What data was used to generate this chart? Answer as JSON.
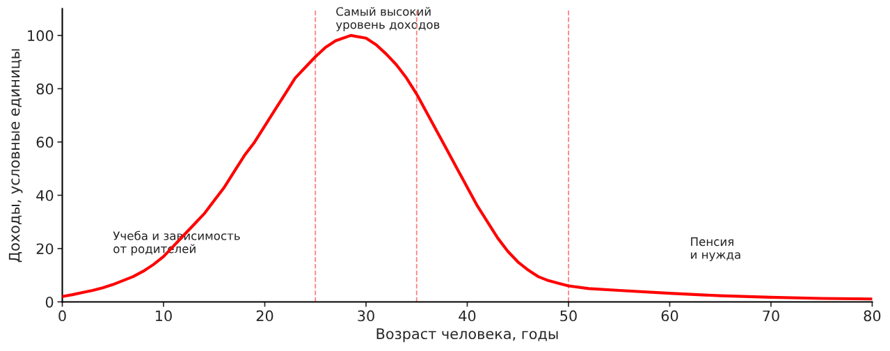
{
  "chart_data": {
    "type": "line",
    "xlabel": "Возраст человека, годы",
    "ylabel": "Доходы, условные единицы",
    "x": [
      0,
      1,
      2,
      3,
      4,
      5,
      6,
      7,
      8,
      9,
      10,
      11,
      12,
      13,
      14,
      15,
      16,
      17,
      18,
      19,
      20,
      21,
      22,
      23,
      24,
      25,
      26,
      27,
      28.5,
      30,
      31,
      32,
      33,
      34,
      35,
      36,
      37,
      38,
      39,
      40,
      41,
      42,
      43,
      44,
      45,
      46,
      47,
      48,
      49,
      50,
      52,
      55,
      60,
      65,
      70,
      75,
      80
    ],
    "series": [
      {
        "color": "#ff0000",
        "values": [
          2,
          2.7,
          3.5,
          4.3,
          5.3,
          6.5,
          8,
          9.5,
          11.5,
          14,
          17,
          21,
          25,
          29,
          33,
          38,
          43,
          49,
          55,
          60,
          66,
          72,
          78,
          84,
          88,
          92,
          95.5,
          98,
          100,
          99,
          96.5,
          93,
          89,
          84,
          78,
          71,
          64,
          57,
          50,
          43,
          36,
          30,
          24,
          19,
          15,
          12,
          9.5,
          8,
          7,
          6,
          5,
          4.3,
          3.2,
          2.3,
          1.7,
          1.3,
          1.1
        ]
      }
    ],
    "xlim": [
      0,
      80
    ],
    "ylim": [
      0,
      110
    ],
    "xticks": [
      0,
      10,
      20,
      30,
      40,
      50,
      60,
      70,
      80
    ],
    "yticks": [
      0,
      20,
      40,
      60,
      80,
      100
    ],
    "ref_lines": [
      {
        "axis": "x",
        "value": 25,
        "color": "#ff8080",
        "line_style": "dashed"
      },
      {
        "axis": "x",
        "value": 35,
        "color": "#ff8080",
        "line_style": "dashed"
      },
      {
        "axis": "x",
        "value": 50,
        "color": "#ff8080",
        "line_style": "dashed"
      }
    ],
    "annotations": [
      "Учеба и зависимость\nот родителей",
      "Самый высокий\nуровень доходов",
      "Пенсия\nи нужда"
    ],
    "grid": false,
    "legend": false
  }
}
